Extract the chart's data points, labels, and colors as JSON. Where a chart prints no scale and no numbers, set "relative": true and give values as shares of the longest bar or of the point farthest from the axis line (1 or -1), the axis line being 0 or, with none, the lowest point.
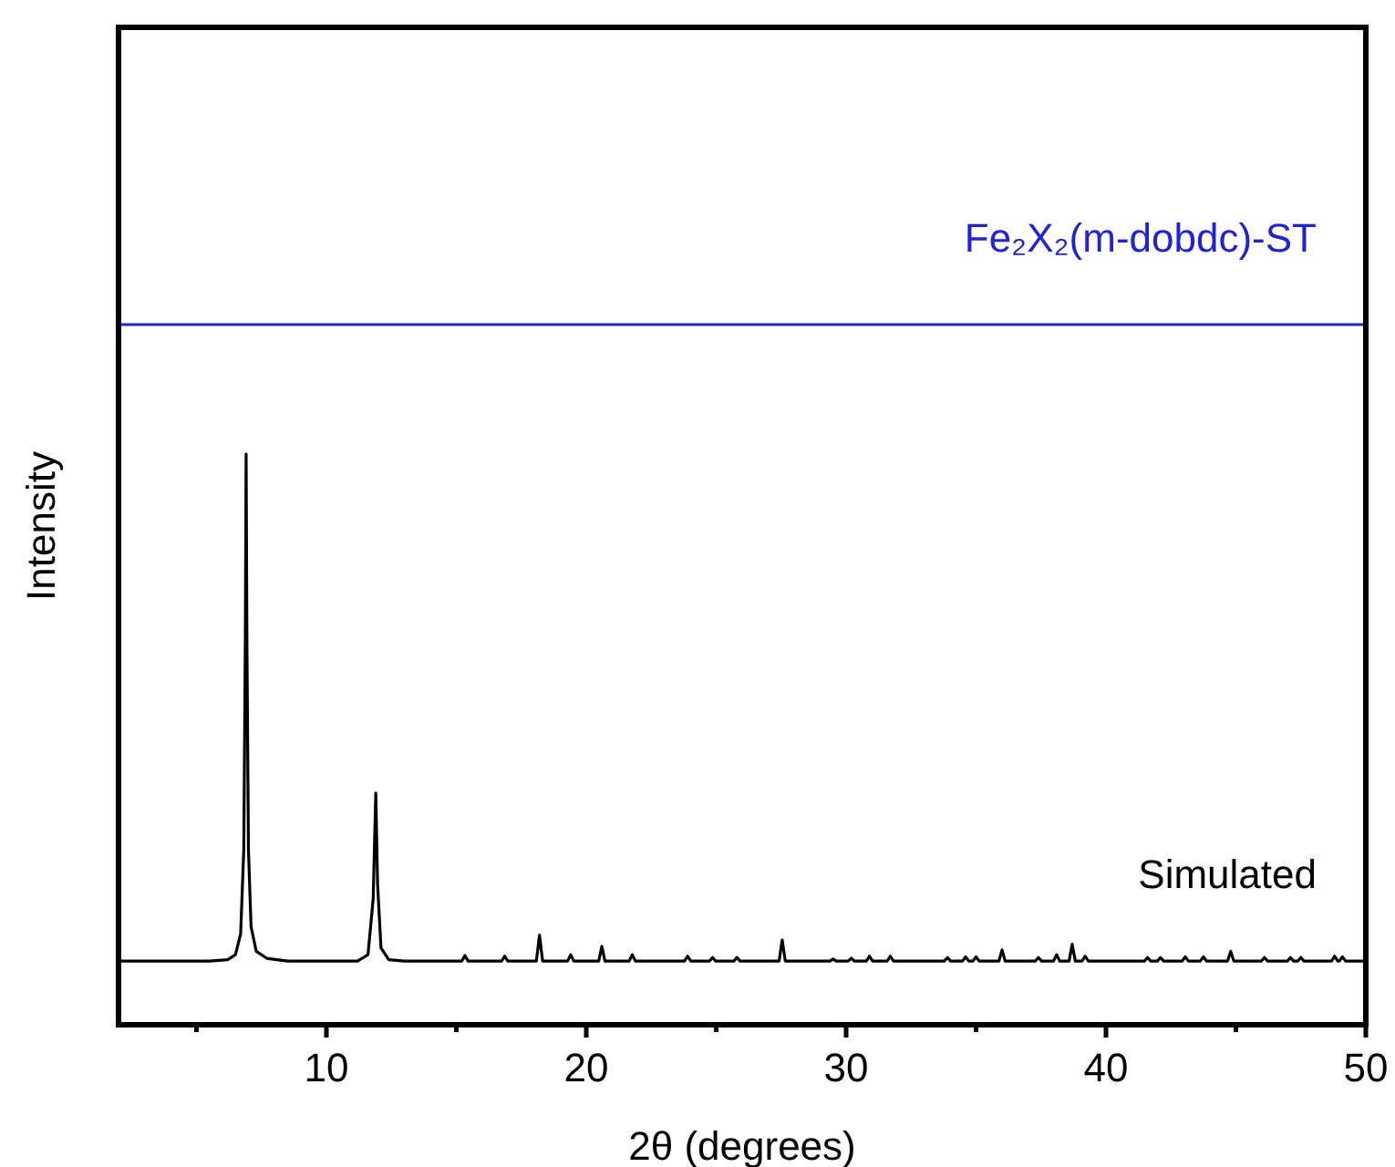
{
  "chart_data": {
    "type": "line",
    "relative": true,
    "xlabel": "2θ (degrees)",
    "ylabel": "Intensity",
    "xlim": [
      2,
      50
    ],
    "xticks": [
      {
        "value": 5,
        "label": null
      },
      10,
      {
        "value": 15,
        "label": null
      },
      20,
      {
        "value": 25,
        "label": null
      },
      30,
      {
        "value": 35,
        "label": null
      },
      40,
      {
        "value": 45,
        "label": null
      },
      50
    ],
    "tick_labels": "x",
    "grid": false,
    "marker": "none",
    "line_style": "solid",
    "series": [
      {
        "name": "Simulated",
        "color": "#000000",
        "x": [
          2,
          5.5,
          6.2,
          6.5,
          6.7,
          6.82,
          6.88,
          6.91,
          6.94,
          7.0,
          7.1,
          7.3,
          7.7,
          8.5,
          11.2,
          11.6,
          11.8,
          11.9,
          11.97,
          12.1,
          12.4,
          13,
          15.21,
          15.33,
          15.45,
          16.74,
          16.86,
          16.98,
          18.08,
          18.2,
          18.32,
          19.28,
          19.4,
          19.52,
          20.48,
          20.6,
          20.72,
          21.65,
          21.77,
          21.89,
          23.78,
          23.9,
          24.02,
          24.74,
          24.86,
          24.98,
          25.68,
          25.8,
          25.92,
          27.42,
          27.54,
          27.66,
          29.38,
          29.5,
          29.62,
          30.08,
          30.2,
          30.32,
          30.78,
          30.9,
          31.02,
          31.58,
          31.7,
          31.82,
          33.78,
          33.9,
          34.02,
          34.48,
          34.6,
          34.72,
          34.88,
          35.0,
          35.12,
          35.88,
          36.0,
          36.12,
          37.28,
          37.4,
          37.52,
          37.98,
          38.1,
          38.22,
          38.58,
          38.7,
          38.82,
          39.08,
          39.2,
          39.32,
          41.48,
          41.6,
          41.72,
          41.98,
          42.1,
          42.22,
          42.93,
          43.05,
          43.17,
          43.63,
          43.75,
          43.87,
          44.68,
          44.8,
          44.92,
          45.98,
          46.1,
          46.22,
          46.98,
          47.1,
          47.22,
          47.38,
          47.5,
          47.62,
          48.68,
          48.8,
          48.92,
          48.98,
          49.1,
          49.22,
          50
        ],
        "values": [
          0.091,
          0.091,
          0.093,
          0.1,
          0.13,
          0.25,
          0.55,
          0.815,
          0.55,
          0.25,
          0.14,
          0.105,
          0.095,
          0.091,
          0.091,
          0.1,
          0.18,
          0.331,
          0.2,
          0.11,
          0.093,
          0.091,
          0.091,
          0.099,
          0.091,
          0.091,
          0.098,
          0.091,
          0.091,
          0.128,
          0.091,
          0.091,
          0.1,
          0.091,
          0.091,
          0.112,
          0.091,
          0.091,
          0.1,
          0.091,
          0.091,
          0.098,
          0.091,
          0.091,
          0.096,
          0.091,
          0.091,
          0.096,
          0.091,
          0.091,
          0.121,
          0.091,
          0.091,
          0.094,
          0.091,
          0.091,
          0.095,
          0.091,
          0.091,
          0.098,
          0.091,
          0.091,
          0.098,
          0.091,
          0.091,
          0.096,
          0.091,
          0.091,
          0.097,
          0.091,
          0.091,
          0.097,
          0.091,
          0.091,
          0.107,
          0.091,
          0.091,
          0.096,
          0.091,
          0.091,
          0.1,
          0.091,
          0.091,
          0.115,
          0.091,
          0.091,
          0.098,
          0.091,
          0.091,
          0.096,
          0.091,
          0.091,
          0.096,
          0.091,
          0.091,
          0.097,
          0.091,
          0.091,
          0.097,
          0.091,
          0.091,
          0.105,
          0.091,
          0.091,
          0.096,
          0.091,
          0.091,
          0.096,
          0.091,
          0.091,
          0.096,
          0.091,
          0.091,
          0.098,
          0.091,
          0.091,
          0.097,
          0.091,
          0.091
        ]
      },
      {
        "name": "Fe₂X₂(m-dobdc)-ST",
        "color": "#1f1fe6",
        "x": [
          2,
          50
        ],
        "values": [
          1,
          1
        ]
      }
    ]
  }
}
